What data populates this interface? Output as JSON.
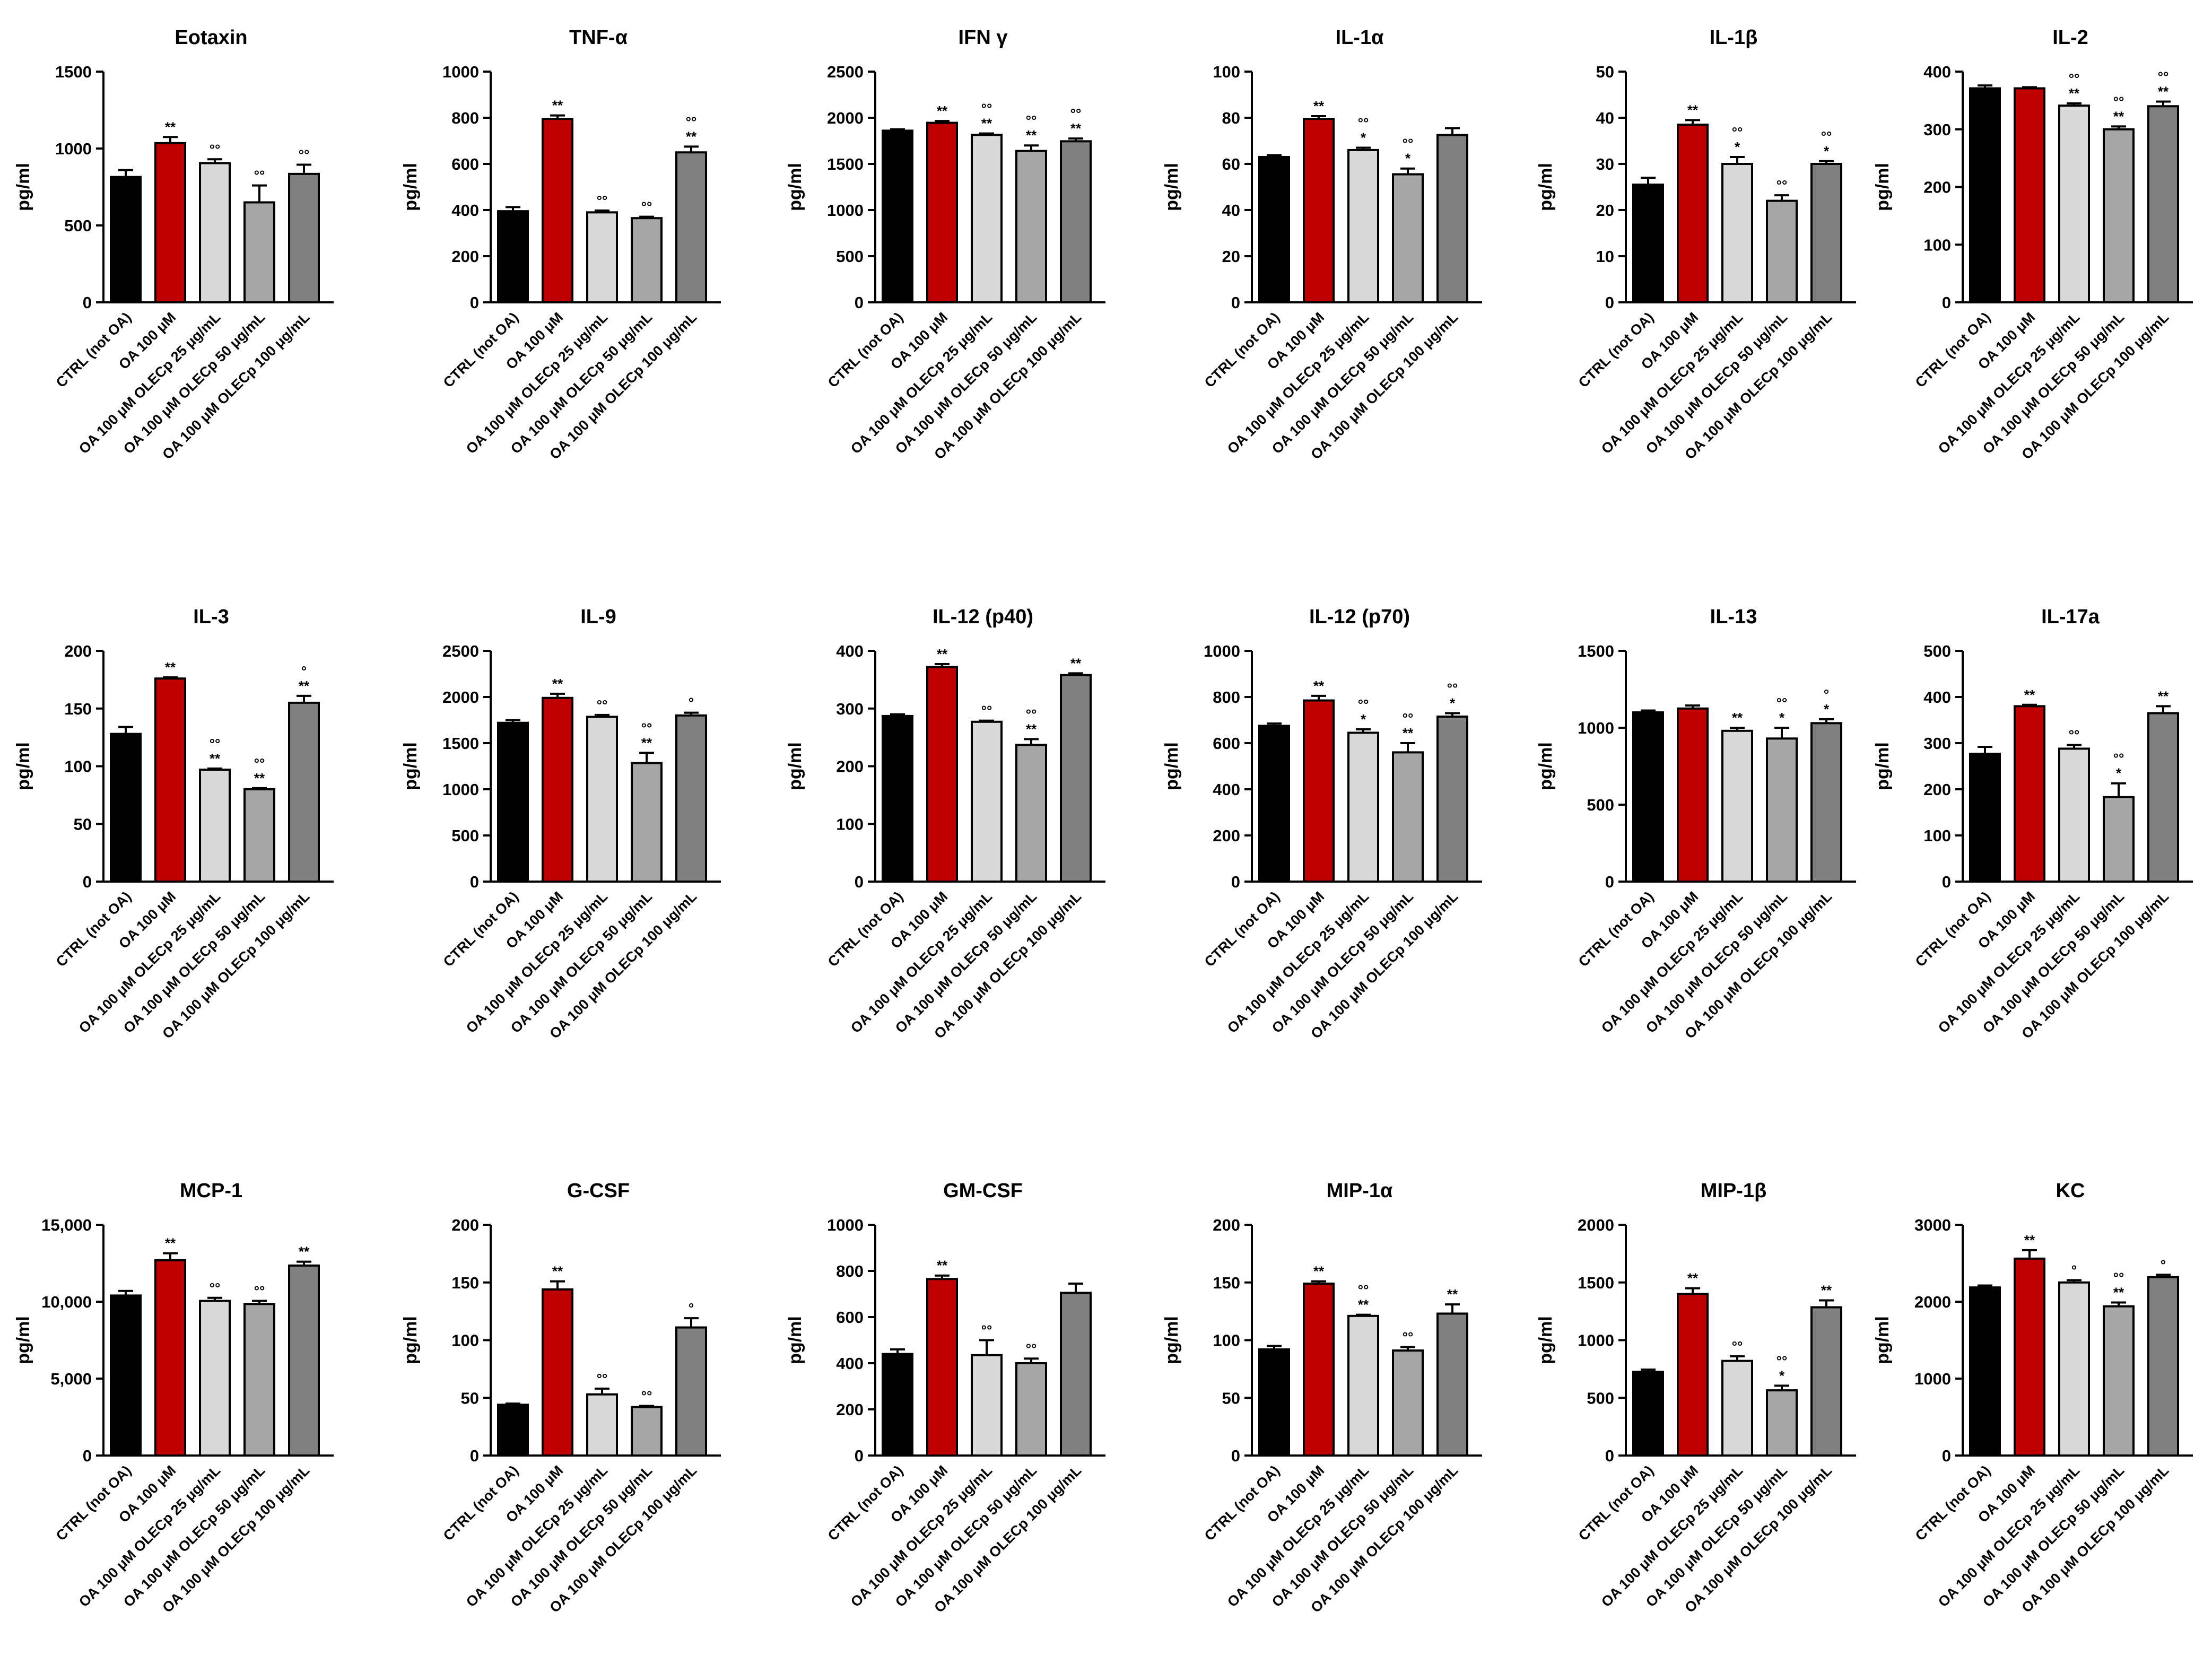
{
  "figure": {
    "categories": [
      "CTRL (not OA)",
      "OA 100 μM",
      "OA 100 μM OLECp 25 μg/mL",
      "OA 100 μM OLECp 50 μg/mL",
      "OA 100 μM OLECp 100 μg/mL"
    ],
    "bar_colors": [
      "#000000",
      "#c00000",
      "#d9d9d9",
      "#a6a6a6",
      "#808080"
    ],
    "ylabel": "pg/ml"
  },
  "chart_data": [
    {
      "type": "bar",
      "title": "Eotaxin",
      "ylabel": "pg/ml",
      "ylim": [
        0,
        1500
      ],
      "ticks": [
        0,
        500,
        1000,
        1500
      ],
      "tick_labels": [
        "0",
        "500",
        "1000",
        "1500"
      ],
      "series": [
        {
          "name": "mean",
          "values": [
            815,
            1035,
            905,
            650,
            835
          ]
        },
        {
          "name": "error",
          "values": [
            45,
            40,
            25,
            110,
            60
          ]
        }
      ],
      "annotations": [
        [
          "",
          ""
        ],
        [
          "",
          "**"
        ],
        [
          "",
          "°°"
        ],
        [
          "",
          "°°"
        ],
        [
          "",
          "°°"
        ]
      ]
    },
    {
      "type": "bar",
      "title": "TNF-α",
      "ylabel": "pg/ml",
      "ylim": [
        0,
        1000
      ],
      "ticks": [
        0,
        200,
        400,
        600,
        800,
        1000
      ],
      "tick_labels": [
        "0",
        "200",
        "400",
        "600",
        "800",
        "1000"
      ],
      "series": [
        {
          "name": "mean",
          "values": [
            395,
            795,
            390,
            365,
            650
          ]
        },
        {
          "name": "error",
          "values": [
            18,
            15,
            8,
            6,
            25
          ]
        }
      ],
      "annotations": [
        [
          "",
          ""
        ],
        [
          "",
          "**"
        ],
        [
          "",
          "°°"
        ],
        [
          "",
          "°°"
        ],
        [
          "°°",
          "**"
        ]
      ]
    },
    {
      "type": "bar",
      "title": "IFN γ",
      "ylabel": "pg/ml",
      "ylim": [
        0,
        2500
      ],
      "ticks": [
        0,
        500,
        1000,
        1500,
        2000,
        2500
      ],
      "tick_labels": [
        "0",
        "500",
        "1000",
        "1500",
        "2000",
        "2500"
      ],
      "series": [
        {
          "name": "mean",
          "values": [
            1860,
            1945,
            1815,
            1640,
            1745
          ]
        },
        {
          "name": "error",
          "values": [
            15,
            20,
            15,
            60,
            30
          ]
        }
      ],
      "annotations": [
        [
          "",
          ""
        ],
        [
          "",
          "**"
        ],
        [
          "°°",
          "**"
        ],
        [
          "°°",
          "**"
        ],
        [
          "°°",
          "**"
        ]
      ]
    },
    {
      "type": "bar",
      "title": "IL-1α",
      "ylabel": "pg/ml",
      "ylim": [
        0,
        100
      ],
      "ticks": [
        0,
        20,
        40,
        60,
        80,
        100
      ],
      "tick_labels": [
        "0",
        "20",
        "40",
        "60",
        "80",
        "100"
      ],
      "series": [
        {
          "name": "mean",
          "values": [
            63,
            79.5,
            66,
            55.5,
            72.5
          ]
        },
        {
          "name": "error",
          "values": [
            0.8,
            1.2,
            1,
            2.5,
            3
          ]
        }
      ],
      "annotations": [
        [
          "",
          ""
        ],
        [
          "",
          "**"
        ],
        [
          "°°",
          "*"
        ],
        [
          "°°",
          "*"
        ],
        [
          "",
          ""
        ]
      ]
    },
    {
      "type": "bar",
      "title": "IL-1β",
      "ylabel": "pg/ml",
      "ylim": [
        0,
        50
      ],
      "ticks": [
        0,
        10,
        20,
        30,
        40,
        50
      ],
      "tick_labels": [
        "0",
        "10",
        "20",
        "30",
        "40",
        "50"
      ],
      "series": [
        {
          "name": "mean",
          "values": [
            25.5,
            38.5,
            30,
            22,
            30
          ]
        },
        {
          "name": "error",
          "values": [
            1.5,
            1,
            1.5,
            1.2,
            0.6
          ]
        }
      ],
      "annotations": [
        [
          "",
          ""
        ],
        [
          "",
          "**"
        ],
        [
          "°°",
          "*"
        ],
        [
          "",
          "°°"
        ],
        [
          "°°",
          "*"
        ]
      ]
    },
    {
      "type": "bar",
      "title": "IL-2",
      "ylabel": "pg/ml",
      "ylim": [
        0,
        400
      ],
      "ticks": [
        0,
        100,
        200,
        300,
        400
      ],
      "tick_labels": [
        "0",
        "100",
        "200",
        "300",
        "400"
      ],
      "series": [
        {
          "name": "mean",
          "values": [
            371,
            371,
            341,
            300,
            340
          ]
        },
        {
          "name": "error",
          "values": [
            5,
            2,
            4,
            5,
            8
          ]
        }
      ],
      "annotations": [
        [
          "",
          ""
        ],
        [
          "",
          ""
        ],
        [
          "°°",
          "**"
        ],
        [
          "°°",
          "**"
        ],
        [
          "°°",
          "**"
        ]
      ]
    },
    {
      "type": "bar",
      "title": "IL-3",
      "ylabel": "pg/ml",
      "ylim": [
        0,
        200
      ],
      "ticks": [
        0,
        50,
        100,
        150,
        200
      ],
      "tick_labels": [
        "0",
        "50",
        "100",
        "150",
        "200"
      ],
      "series": [
        {
          "name": "mean",
          "values": [
            128,
            176,
            97,
            80,
            155
          ]
        },
        {
          "name": "error",
          "values": [
            6,
            1,
            1,
            1,
            6
          ]
        }
      ],
      "annotations": [
        [
          "",
          ""
        ],
        [
          "",
          "**"
        ],
        [
          "°°",
          "**"
        ],
        [
          "°°",
          "**"
        ],
        [
          "°",
          "**"
        ]
      ]
    },
    {
      "type": "bar",
      "title": "IL-9",
      "ylabel": "pg/ml",
      "ylim": [
        0,
        2500
      ],
      "ticks": [
        0,
        500,
        1000,
        1500,
        2000,
        2500
      ],
      "tick_labels": [
        "0",
        "500",
        "1000",
        "1500",
        "2000",
        "2500"
      ],
      "series": [
        {
          "name": "mean",
          "values": [
            1720,
            1990,
            1785,
            1285,
            1800
          ]
        },
        {
          "name": "error",
          "values": [
            30,
            45,
            20,
            110,
            30
          ]
        }
      ],
      "annotations": [
        [
          "",
          ""
        ],
        [
          "",
          "**"
        ],
        [
          "",
          "°°"
        ],
        [
          "°°",
          "**"
        ],
        [
          "",
          "°"
        ]
      ]
    },
    {
      "type": "bar",
      "title": "IL-12 (p40)",
      "ylabel": "pg/ml",
      "ylim": [
        0,
        400
      ],
      "ticks": [
        0,
        100,
        200,
        300,
        400
      ],
      "tick_labels": [
        "0",
        "100",
        "200",
        "300",
        "400"
      ],
      "series": [
        {
          "name": "mean",
          "values": [
            287,
            372,
            277,
            237,
            358
          ]
        },
        {
          "name": "error",
          "values": [
            3,
            5,
            2,
            10,
            3
          ]
        }
      ],
      "annotations": [
        [
          "",
          ""
        ],
        [
          "",
          "**"
        ],
        [
          "",
          "°°"
        ],
        [
          "°°",
          "**"
        ],
        [
          "",
          "**"
        ]
      ]
    },
    {
      "type": "bar",
      "title": "IL-12 (p70)",
      "ylabel": "pg/ml",
      "ylim": [
        0,
        1000
      ],
      "ticks": [
        0,
        200,
        400,
        600,
        800,
        1000
      ],
      "tick_labels": [
        "0",
        "200",
        "400",
        "600",
        "800",
        "1000"
      ],
      "series": [
        {
          "name": "mean",
          "values": [
            675,
            785,
            645,
            560,
            715
          ]
        },
        {
          "name": "error",
          "values": [
            10,
            20,
            15,
            40,
            15
          ]
        }
      ],
      "annotations": [
        [
          "",
          ""
        ],
        [
          "",
          "**"
        ],
        [
          "°°",
          "*"
        ],
        [
          "°°",
          "**"
        ],
        [
          "°°",
          "*"
        ]
      ]
    },
    {
      "type": "bar",
      "title": "IL-13",
      "ylabel": "pg/ml",
      "ylim": [
        0,
        1500
      ],
      "ticks": [
        0,
        500,
        1000,
        1500
      ],
      "tick_labels": [
        "0",
        "500",
        "1000",
        "1500"
      ],
      "series": [
        {
          "name": "mean",
          "values": [
            1100,
            1125,
            980,
            930,
            1030
          ]
        },
        {
          "name": "error",
          "values": [
            12,
            20,
            20,
            70,
            25
          ]
        }
      ],
      "annotations": [
        [
          "",
          ""
        ],
        [
          "",
          ""
        ],
        [
          "",
          "**"
        ],
        [
          "°°",
          "*"
        ],
        [
          "°",
          "*"
        ]
      ]
    },
    {
      "type": "bar",
      "title": "IL-17a",
      "ylabel": "pg/ml",
      "ylim": [
        0,
        500
      ],
      "ticks": [
        0,
        100,
        200,
        300,
        400,
        500
      ],
      "tick_labels": [
        "0",
        "100",
        "200",
        "300",
        "400",
        "500"
      ],
      "series": [
        {
          "name": "mean",
          "values": [
            277,
            380,
            288,
            183,
            365
          ]
        },
        {
          "name": "error",
          "values": [
            15,
            3,
            8,
            30,
            15
          ]
        }
      ],
      "annotations": [
        [
          "",
          ""
        ],
        [
          "",
          "**"
        ],
        [
          "",
          "°°"
        ],
        [
          "°°",
          "*"
        ],
        [
          "",
          "**"
        ]
      ]
    },
    {
      "type": "bar",
      "title": "MCP-1",
      "ylabel": "pg/ml",
      "ylim": [
        0,
        15000
      ],
      "ticks": [
        0,
        5000,
        10000,
        15000
      ],
      "tick_labels": [
        "0",
        "5,000",
        "10,000",
        "15,000"
      ],
      "series": [
        {
          "name": "mean",
          "values": [
            10400,
            12700,
            10050,
            9850,
            12350
          ]
        },
        {
          "name": "error",
          "values": [
            300,
            450,
            200,
            200,
            250
          ]
        }
      ],
      "annotations": [
        [
          "",
          ""
        ],
        [
          "",
          "**"
        ],
        [
          "",
          "°°"
        ],
        [
          "",
          "°°"
        ],
        [
          "",
          "**"
        ]
      ]
    },
    {
      "type": "bar",
      "title": "G-CSF",
      "ylabel": "pg/ml",
      "ylim": [
        0,
        200
      ],
      "ticks": [
        0,
        50,
        100,
        150,
        200
      ],
      "tick_labels": [
        "0",
        "50",
        "100",
        "150",
        "200"
      ],
      "series": [
        {
          "name": "mean",
          "values": [
            44,
            144,
            53,
            42,
            111
          ]
        },
        {
          "name": "error",
          "values": [
            1,
            7,
            5,
            1,
            8
          ]
        }
      ],
      "annotations": [
        [
          "",
          ""
        ],
        [
          "",
          "**"
        ],
        [
          "",
          "°°"
        ],
        [
          "",
          "°°"
        ],
        [
          "",
          "°"
        ]
      ]
    },
    {
      "type": "bar",
      "title": "GM-CSF",
      "ylabel": "pg/ml",
      "ylim": [
        0,
        1000
      ],
      "ticks": [
        0,
        200,
        400,
        600,
        800,
        1000
      ],
      "tick_labels": [
        "0",
        "200",
        "400",
        "600",
        "800",
        "1000"
      ],
      "series": [
        {
          "name": "mean",
          "values": [
            440,
            765,
            435,
            400,
            705
          ]
        },
        {
          "name": "error",
          "values": [
            20,
            15,
            65,
            20,
            40
          ]
        }
      ],
      "annotations": [
        [
          "",
          ""
        ],
        [
          "",
          "**"
        ],
        [
          "",
          "°°"
        ],
        [
          "",
          "°°"
        ],
        [
          "",
          ""
        ]
      ]
    },
    {
      "type": "bar",
      "title": "MIP-1α",
      "ylabel": "pg/ml",
      "ylim": [
        0,
        200
      ],
      "ticks": [
        0,
        50,
        100,
        150,
        200
      ],
      "tick_labels": [
        "0",
        "50",
        "100",
        "150",
        "200"
      ],
      "series": [
        {
          "name": "mean",
          "values": [
            92,
            149,
            121,
            91,
            123
          ]
        },
        {
          "name": "error",
          "values": [
            3,
            2,
            1,
            3,
            8
          ]
        }
      ],
      "annotations": [
        [
          "",
          ""
        ],
        [
          "",
          "**"
        ],
        [
          "°°",
          "**"
        ],
        [
          "",
          "°°"
        ],
        [
          "",
          "**"
        ]
      ]
    },
    {
      "type": "bar",
      "title": "MIP-1β",
      "ylabel": "pg/ml",
      "ylim": [
        0,
        2000
      ],
      "ticks": [
        0,
        500,
        1000,
        1500,
        2000
      ],
      "tick_labels": [
        "0",
        "500",
        "1000",
        "1500",
        "2000"
      ],
      "series": [
        {
          "name": "mean",
          "values": [
            725,
            1400,
            820,
            565,
            1285
          ]
        },
        {
          "name": "error",
          "values": [
            20,
            50,
            40,
            40,
            60
          ]
        }
      ],
      "annotations": [
        [
          "",
          ""
        ],
        [
          "",
          "**"
        ],
        [
          "",
          "°°"
        ],
        [
          "°°",
          "*"
        ],
        [
          "",
          "**"
        ]
      ]
    },
    {
      "type": "bar",
      "title": "KC",
      "ylabel": "pg/ml",
      "ylim": [
        0,
        3000
      ],
      "ticks": [
        0,
        1000,
        2000,
        3000
      ],
      "tick_labels": [
        "0",
        "1000",
        "2000",
        "3000"
      ],
      "series": [
        {
          "name": "mean",
          "values": [
            2185,
            2560,
            2250,
            1940,
            2320
          ]
        },
        {
          "name": "error",
          "values": [
            25,
            110,
            30,
            50,
            30
          ]
        }
      ],
      "annotations": [
        [
          "",
          ""
        ],
        [
          "",
          "**"
        ],
        [
          "",
          "°"
        ],
        [
          "°°",
          "**"
        ],
        [
          "",
          "°"
        ]
      ]
    }
  ]
}
